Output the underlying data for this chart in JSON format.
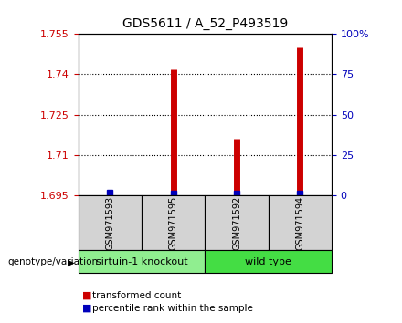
{
  "title": "GDS5611 / A_52_P493519",
  "samples": [
    "GSM971593",
    "GSM971595",
    "GSM971592",
    "GSM971594"
  ],
  "group_names": [
    "sirtuin-1 knockout",
    "wild type"
  ],
  "transformed_counts": [
    1.6955,
    1.742,
    1.716,
    1.75
  ],
  "percentile_ranks_pct": [
    2,
    1,
    1,
    1
  ],
  "y_min": 1.695,
  "y_max": 1.755,
  "y_ticks_left": [
    1.695,
    1.71,
    1.725,
    1.74,
    1.755
  ],
  "y_ticks_left_labels": [
    "1.695",
    "1.71",
    "1.725",
    "1.74",
    "1.755"
  ],
  "y_ticks_right": [
    0,
    25,
    50,
    75,
    100
  ],
  "y_ticks_right_labels": [
    "0",
    "25",
    "50",
    "75",
    "100%"
  ],
  "left_tick_color": "#CC0000",
  "right_tick_color": "#0000BB",
  "red_bar_color": "#CC0000",
  "blue_bar_color": "#0000BB",
  "grid_lines": [
    1.71,
    1.725,
    1.74
  ],
  "legend_red": "transformed count",
  "legend_blue": "percentile rank within the sample",
  "genotype_label": "genotype/variation",
  "sample_box_color": "#D3D3D3",
  "group1_box_color": "#90EE90",
  "group2_box_color": "#44DD44",
  "title_fontsize": 10
}
